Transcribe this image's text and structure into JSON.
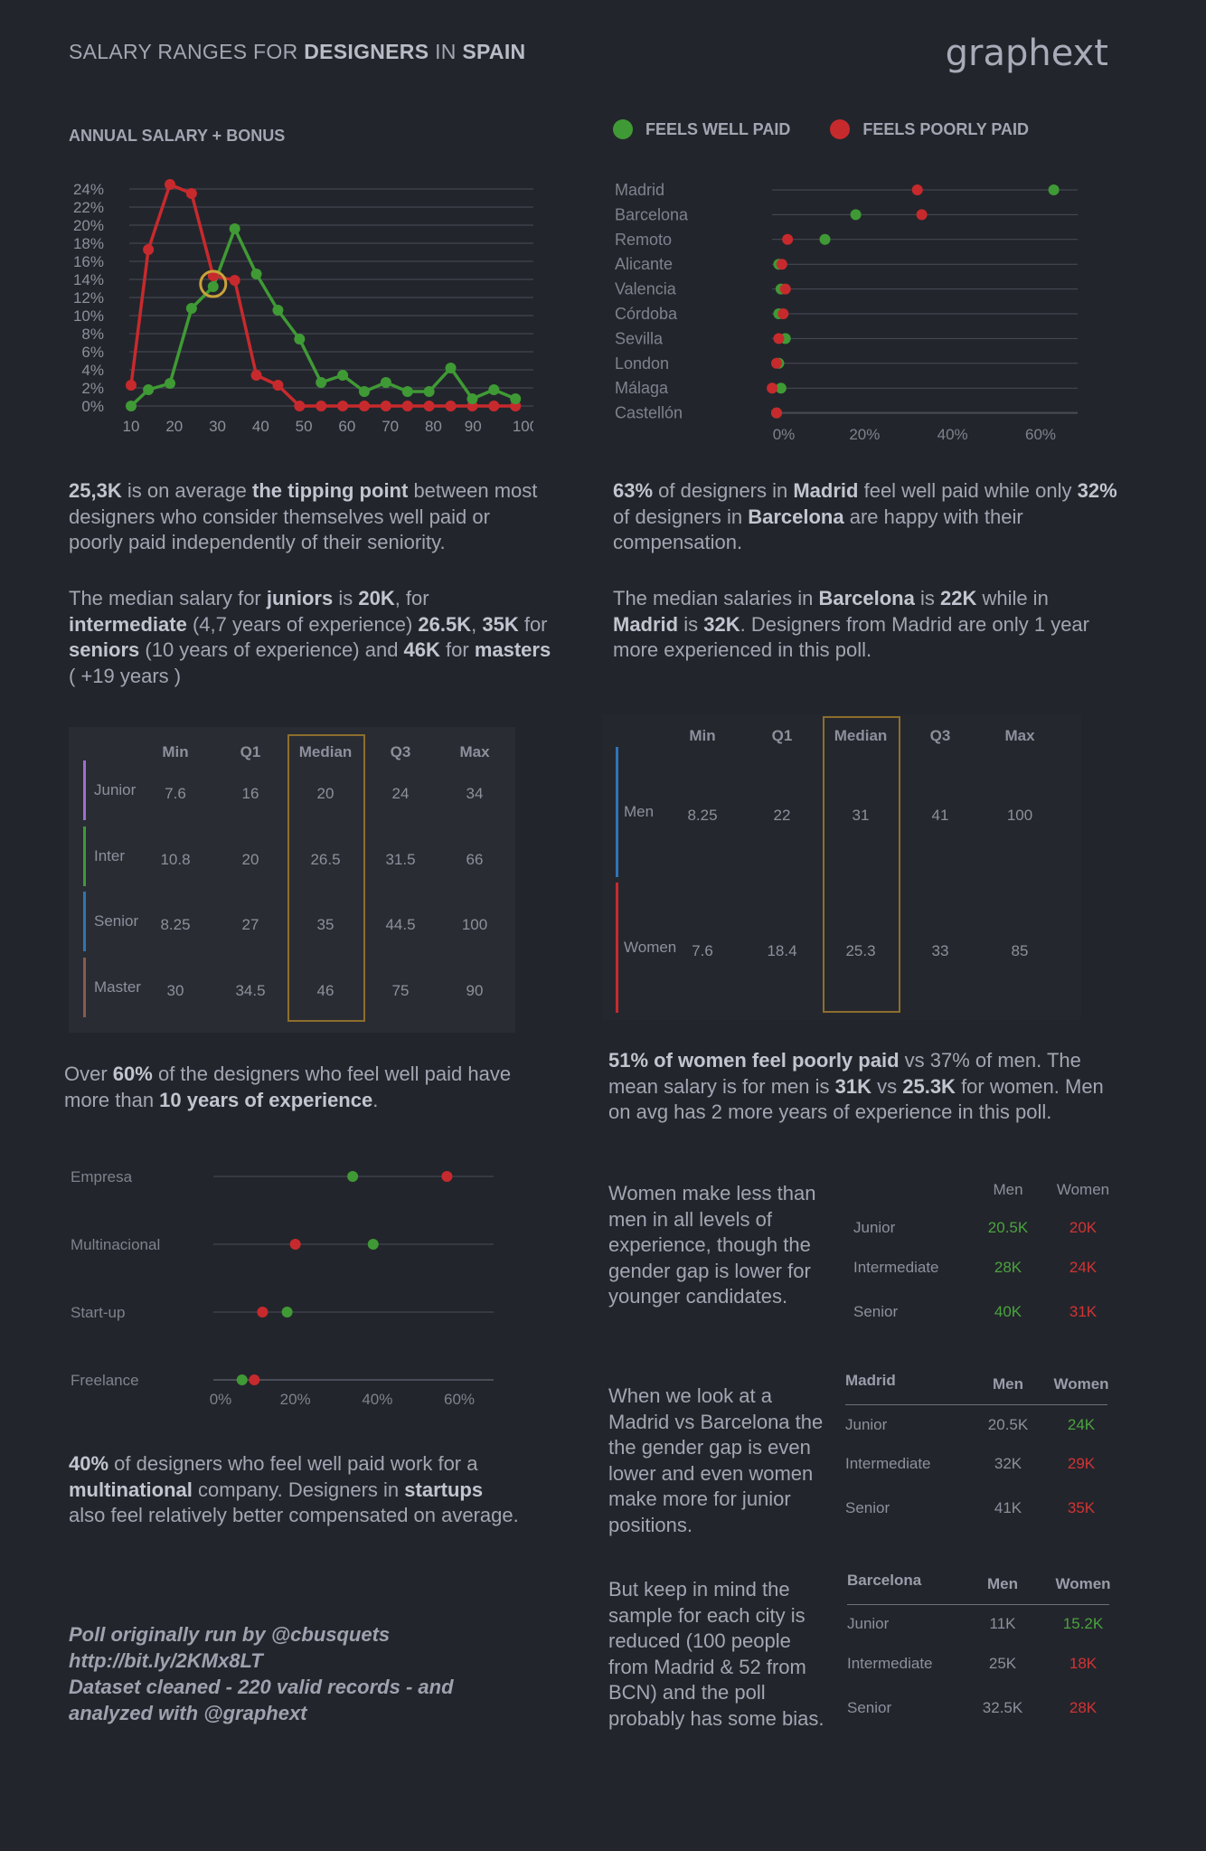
{
  "header": {
    "title_parts": [
      "SALARY RANGES  FOR ",
      "DESIGNERS",
      " IN ",
      "SPAIN"
    ],
    "brand": "graphext"
  },
  "colors": {
    "green": "#3f9a35",
    "red": "#c72a2d",
    "gold": "#c9a23a",
    "purple": "#9b6fd0",
    "blue": "#2f74b5",
    "brown": "#8a5a4a",
    "grid": "#4a4d57"
  },
  "salary_section": {
    "label": "ANNUAL SALARY + BONUS"
  },
  "paid_legend": {
    "well": "FEELS WELL PAID",
    "poorly": "FEELS POORLY PAID"
  },
  "chart_data": [
    {
      "type": "line",
      "title": "ANNUAL SALARY + BONUS",
      "x_ticks": [
        "10",
        "20",
        "30",
        "40",
        "50",
        "60",
        "70",
        "80",
        "90",
        "100"
      ],
      "y_ticks": [
        "0%",
        "2%",
        "4%",
        "6%",
        "8%",
        "10%",
        "12%",
        "14%",
        "16%",
        "18%",
        "20%",
        "22%",
        "24%"
      ],
      "xlim": [
        10,
        100
      ],
      "ylim": [
        0,
        24
      ],
      "series": [
        {
          "name": "FEELS WELL PAID",
          "color": "#3f9a35",
          "x": [
            10,
            14,
            19,
            24,
            29,
            34,
            39,
            44,
            49,
            54,
            59,
            64,
            69,
            74,
            79,
            84,
            89,
            94,
            99
          ],
          "y": [
            0,
            1.8,
            2.5,
            10.8,
            13.2,
            19.6,
            14.6,
            10.6,
            7.4,
            2.6,
            3.4,
            1.6,
            2.6,
            1.6,
            1.6,
            4.2,
            0.8,
            1.8,
            0.8
          ]
        },
        {
          "name": "FEELS POORLY PAID",
          "color": "#c72a2d",
          "x": [
            10,
            14,
            19,
            24,
            29,
            34,
            39,
            44,
            49,
            54,
            59,
            64,
            69,
            74,
            79,
            84,
            89,
            94,
            99
          ],
          "y": [
            2.3,
            17.3,
            24.5,
            23.5,
            14.4,
            13.9,
            3.4,
            2.3,
            0,
            0,
            0,
            0,
            0,
            0,
            0,
            0,
            0,
            0,
            0
          ]
        }
      ],
      "highlight": {
        "x": 29,
        "y": 13.5
      }
    },
    {
      "type": "scatter",
      "title": "",
      "categories": [
        "Madrid",
        "Barcelona",
        "Remoto",
        "Alicante",
        "Valencia",
        "Córdoba",
        "Sevilla",
        "London",
        "Málaga",
        "Castellón"
      ],
      "x_ticks": [
        "0%",
        "20%",
        "40%",
        "60%"
      ],
      "xlim": [
        0,
        60
      ],
      "series": [
        {
          "name": "FEELS WELL PAID",
          "color": "#3f9a35",
          "values": [
            63,
            18,
            11,
            0.5,
            1,
            0.5,
            2,
            0.5,
            1,
            0
          ]
        },
        {
          "name": "FEELS POORLY PAID",
          "color": "#c72a2d",
          "values": [
            32,
            33,
            2.5,
            1.2,
            2,
            1.5,
            0.5,
            0,
            -1,
            0
          ]
        }
      ]
    },
    {
      "type": "scatter",
      "title": "",
      "categories": [
        "Empresa",
        "Multinacional",
        "Start-up",
        "Freelance"
      ],
      "x_ticks": [
        "0%",
        "20%",
        "40%",
        "60%"
      ],
      "xlim": [
        0,
        60
      ],
      "series": [
        {
          "name": "FEELS WELL PAID",
          "color": "#3f9a35",
          "values": [
            34,
            39,
            18,
            7
          ]
        },
        {
          "name": "FEELS POORLY PAID",
          "color": "#c72a2d",
          "values": [
            57,
            20,
            12,
            10
          ]
        }
      ]
    }
  ],
  "texts": {
    "p1": "<b>25,3K</b> is on average <b>the tipping point</b> between most designers who consider themselves well paid or poorly paid independently of their seniority.",
    "p2": "The median salary for <b>juniors</b> is <b>20K</b>, for <b>intermediate</b> (4,7 years of experience) <b>26.5K</b>, <b>35K</b> for <b>seniors</b> (10 years of experience) and <b>46K</b> for <b>masters</b> ( +19 years )",
    "p3": "<b>63%</b> of designers in <b>Madrid</b> feel well paid while only <b>32%</b> of designers in <b>Barcelona</b> are happy with their compensation.",
    "p4": "The median salaries in <b>Barcelona</b> is <b>22K</b> while in <b>Madrid</b> is <b>32K</b>. Designers from Madrid are only 1 year more experienced in this poll.",
    "p5": "Over <b>60%</b> of the designers who feel well paid have more than <b>10 years of experience</b>.",
    "p6": "<b>51% of women feel poorly paid</b> vs 37% of men. The mean salary is for men is <b>31K</b>  vs <b>25.3K</b> for women. Men on avg has 2 more years of experience in this poll.",
    "p7": "<b>40%</b> of designers who feel well paid work for a <b>multinational</b> company. Designers in <b>startups</b> also feel relatively better compensated on average.",
    "p8": "Women make less than men in all levels of experience, though the gender gap is lower for younger candidates.",
    "p9": "When we look at a Madrid vs Barcelona the the gender gap is even lower  and even women make more for junior positions.",
    "p10": "But keep in mind the sample for each city is reduced (100 people from Madrid &amp; 52 from BCN) and the poll probably has some bias."
  },
  "footer": {
    "line1": "Poll originally run by @cbusquets",
    "line2": "http://bit.ly/2KMx8LT",
    "line3": "Dataset cleaned - 220 valid records - and",
    "line4": "analyzed with @graphext"
  },
  "seniority_table": {
    "headers": [
      "Min",
      "Q1",
      "Median",
      "Q3",
      "Max"
    ],
    "rows": [
      {
        "label": "Junior",
        "values": [
          "7.6",
          "16",
          "20",
          "24",
          "34"
        ]
      },
      {
        "label": "Inter",
        "values": [
          "10.8",
          "20",
          "26.5",
          "31.5",
          "66"
        ]
      },
      {
        "label": "Senior",
        "values": [
          "8.25",
          "27",
          "35",
          "44.5",
          "100"
        ]
      },
      {
        "label": "Master",
        "values": [
          "30",
          "34.5",
          "46",
          "75",
          "90"
        ]
      }
    ]
  },
  "gender_table": {
    "headers": [
      "Min",
      "Q1",
      "Median",
      "Q3",
      "Max"
    ],
    "rows": [
      {
        "label": "Men",
        "values": [
          "8.25",
          "22",
          "31",
          "41",
          "100"
        ]
      },
      {
        "label": "Women",
        "values": [
          "7.6",
          "18.4",
          "25.3",
          "33",
          "85"
        ]
      }
    ]
  },
  "gap_table": {
    "headers": [
      "Men",
      "Women"
    ],
    "rows": [
      {
        "label": "Junior",
        "men": "20.5K",
        "women": "20K"
      },
      {
        "label": "Intermediate",
        "men": "28K",
        "women": "24K"
      },
      {
        "label": "Senior",
        "men": "40K",
        "women": "31K"
      }
    ]
  },
  "madrid_table": {
    "title": "Madrid",
    "headers": [
      "Men",
      "Women"
    ],
    "rows": [
      {
        "label": "Junior",
        "men": "20.5K",
        "women": "24K"
      },
      {
        "label": "Intermediate",
        "men": "32K",
        "women": "29K"
      },
      {
        "label": "Senior",
        "men": "41K",
        "women": "35K"
      }
    ]
  },
  "barcelona_table": {
    "title": "Barcelona",
    "headers": [
      "Men",
      "Women"
    ],
    "rows": [
      {
        "label": "Junior",
        "men": "11K",
        "women": "15.2K"
      },
      {
        "label": "Intermediate",
        "men": "25K",
        "women": "18K"
      },
      {
        "label": "Senior",
        "men": "32.5K",
        "women": "28K"
      }
    ]
  }
}
